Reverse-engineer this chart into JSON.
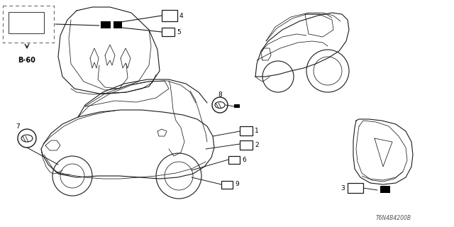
{
  "bg_color": "#ffffff",
  "diagram_number": "T6N4B4200B",
  "b60_label": "B-60",
  "line_color": "#1a1a1a",
  "label_fontsize": 6.5,
  "diagram_num_fontsize": 5.5
}
